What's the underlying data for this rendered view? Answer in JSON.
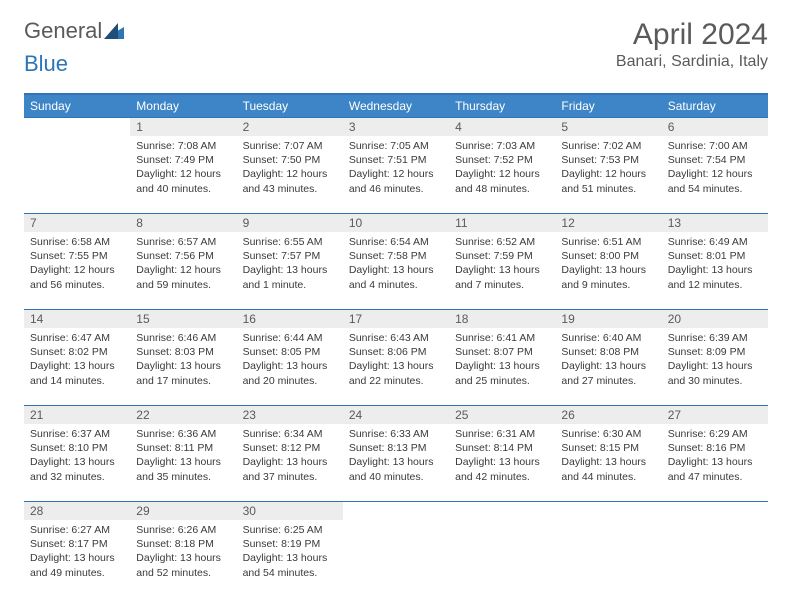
{
  "logo": {
    "text_a": "General",
    "text_b": "Blue"
  },
  "title": {
    "month": "April 2024",
    "location": "Banari, Sardinia, Italy"
  },
  "colors": {
    "header_bg": "#3d85c6",
    "border": "#2e75b6",
    "daynum_bg": "#ededed",
    "text_gray": "#5a5a5a"
  },
  "weekdays": [
    "Sunday",
    "Monday",
    "Tuesday",
    "Wednesday",
    "Thursday",
    "Friday",
    "Saturday"
  ],
  "weeks": [
    [
      null,
      {
        "n": "1",
        "sr": "Sunrise: 7:08 AM",
        "ss": "Sunset: 7:49 PM",
        "dl": "Daylight: 12 hours and 40 minutes."
      },
      {
        "n": "2",
        "sr": "Sunrise: 7:07 AM",
        "ss": "Sunset: 7:50 PM",
        "dl": "Daylight: 12 hours and 43 minutes."
      },
      {
        "n": "3",
        "sr": "Sunrise: 7:05 AM",
        "ss": "Sunset: 7:51 PM",
        "dl": "Daylight: 12 hours and 46 minutes."
      },
      {
        "n": "4",
        "sr": "Sunrise: 7:03 AM",
        "ss": "Sunset: 7:52 PM",
        "dl": "Daylight: 12 hours and 48 minutes."
      },
      {
        "n": "5",
        "sr": "Sunrise: 7:02 AM",
        "ss": "Sunset: 7:53 PM",
        "dl": "Daylight: 12 hours and 51 minutes."
      },
      {
        "n": "6",
        "sr": "Sunrise: 7:00 AM",
        "ss": "Sunset: 7:54 PM",
        "dl": "Daylight: 12 hours and 54 minutes."
      }
    ],
    [
      {
        "n": "7",
        "sr": "Sunrise: 6:58 AM",
        "ss": "Sunset: 7:55 PM",
        "dl": "Daylight: 12 hours and 56 minutes."
      },
      {
        "n": "8",
        "sr": "Sunrise: 6:57 AM",
        "ss": "Sunset: 7:56 PM",
        "dl": "Daylight: 12 hours and 59 minutes."
      },
      {
        "n": "9",
        "sr": "Sunrise: 6:55 AM",
        "ss": "Sunset: 7:57 PM",
        "dl": "Daylight: 13 hours and 1 minute."
      },
      {
        "n": "10",
        "sr": "Sunrise: 6:54 AM",
        "ss": "Sunset: 7:58 PM",
        "dl": "Daylight: 13 hours and 4 minutes."
      },
      {
        "n": "11",
        "sr": "Sunrise: 6:52 AM",
        "ss": "Sunset: 7:59 PM",
        "dl": "Daylight: 13 hours and 7 minutes."
      },
      {
        "n": "12",
        "sr": "Sunrise: 6:51 AM",
        "ss": "Sunset: 8:00 PM",
        "dl": "Daylight: 13 hours and 9 minutes."
      },
      {
        "n": "13",
        "sr": "Sunrise: 6:49 AM",
        "ss": "Sunset: 8:01 PM",
        "dl": "Daylight: 13 hours and 12 minutes."
      }
    ],
    [
      {
        "n": "14",
        "sr": "Sunrise: 6:47 AM",
        "ss": "Sunset: 8:02 PM",
        "dl": "Daylight: 13 hours and 14 minutes."
      },
      {
        "n": "15",
        "sr": "Sunrise: 6:46 AM",
        "ss": "Sunset: 8:03 PM",
        "dl": "Daylight: 13 hours and 17 minutes."
      },
      {
        "n": "16",
        "sr": "Sunrise: 6:44 AM",
        "ss": "Sunset: 8:05 PM",
        "dl": "Daylight: 13 hours and 20 minutes."
      },
      {
        "n": "17",
        "sr": "Sunrise: 6:43 AM",
        "ss": "Sunset: 8:06 PM",
        "dl": "Daylight: 13 hours and 22 minutes."
      },
      {
        "n": "18",
        "sr": "Sunrise: 6:41 AM",
        "ss": "Sunset: 8:07 PM",
        "dl": "Daylight: 13 hours and 25 minutes."
      },
      {
        "n": "19",
        "sr": "Sunrise: 6:40 AM",
        "ss": "Sunset: 8:08 PM",
        "dl": "Daylight: 13 hours and 27 minutes."
      },
      {
        "n": "20",
        "sr": "Sunrise: 6:39 AM",
        "ss": "Sunset: 8:09 PM",
        "dl": "Daylight: 13 hours and 30 minutes."
      }
    ],
    [
      {
        "n": "21",
        "sr": "Sunrise: 6:37 AM",
        "ss": "Sunset: 8:10 PM",
        "dl": "Daylight: 13 hours and 32 minutes."
      },
      {
        "n": "22",
        "sr": "Sunrise: 6:36 AM",
        "ss": "Sunset: 8:11 PM",
        "dl": "Daylight: 13 hours and 35 minutes."
      },
      {
        "n": "23",
        "sr": "Sunrise: 6:34 AM",
        "ss": "Sunset: 8:12 PM",
        "dl": "Daylight: 13 hours and 37 minutes."
      },
      {
        "n": "24",
        "sr": "Sunrise: 6:33 AM",
        "ss": "Sunset: 8:13 PM",
        "dl": "Daylight: 13 hours and 40 minutes."
      },
      {
        "n": "25",
        "sr": "Sunrise: 6:31 AM",
        "ss": "Sunset: 8:14 PM",
        "dl": "Daylight: 13 hours and 42 minutes."
      },
      {
        "n": "26",
        "sr": "Sunrise: 6:30 AM",
        "ss": "Sunset: 8:15 PM",
        "dl": "Daylight: 13 hours and 44 minutes."
      },
      {
        "n": "27",
        "sr": "Sunrise: 6:29 AM",
        "ss": "Sunset: 8:16 PM",
        "dl": "Daylight: 13 hours and 47 minutes."
      }
    ],
    [
      {
        "n": "28",
        "sr": "Sunrise: 6:27 AM",
        "ss": "Sunset: 8:17 PM",
        "dl": "Daylight: 13 hours and 49 minutes."
      },
      {
        "n": "29",
        "sr": "Sunrise: 6:26 AM",
        "ss": "Sunset: 8:18 PM",
        "dl": "Daylight: 13 hours and 52 minutes."
      },
      {
        "n": "30",
        "sr": "Sunrise: 6:25 AM",
        "ss": "Sunset: 8:19 PM",
        "dl": "Daylight: 13 hours and 54 minutes."
      },
      null,
      null,
      null,
      null
    ]
  ]
}
